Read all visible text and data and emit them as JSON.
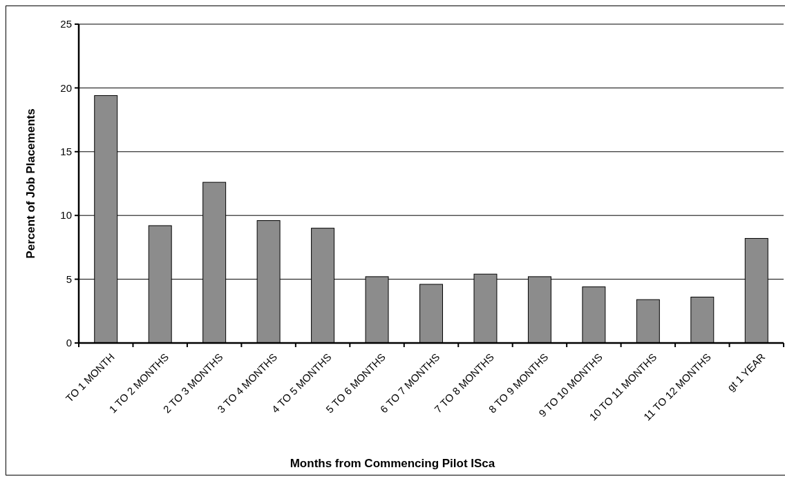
{
  "chart_data": {
    "type": "bar",
    "xlabel": "Months from Commencing Pilot ISca",
    "ylabel": "Percent of Job Placements",
    "categories": [
      "TO 1 MONTH",
      "1 TO 2 MONTHS",
      "2 TO 3 MONTHS",
      "3 TO 4 MONTHS",
      "4 TO 5 MONTHS",
      "5 TO 6 MONTHS",
      "6 TO 7 MONTHS",
      "7 TO 8 MONTHS",
      "8 TO 9 MONTHS",
      "9 TO 10 MONTHS",
      "10 TO 11 MONTHS",
      "11 TO 12 MONTHS",
      "gt 1 YEAR"
    ],
    "values": [
      19.4,
      9.2,
      12.6,
      9.6,
      9.0,
      5.2,
      4.6,
      5.4,
      5.2,
      4.4,
      3.4,
      3.6,
      8.2
    ],
    "color": "#8c8c8c",
    "ylim": [
      0,
      25
    ],
    "yticks": [
      0,
      5,
      10,
      15,
      20,
      25
    ],
    "grid": "y"
  }
}
